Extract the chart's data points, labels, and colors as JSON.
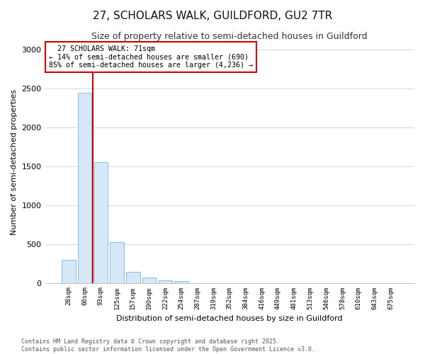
{
  "title_line1": "27, SCHOLARS WALK, GUILDFORD, GU2 7TR",
  "title_line2": "Size of property relative to semi-detached houses in Guildford",
  "xlabel": "Distribution of semi-detached houses by size in Guildford",
  "ylabel": "Number of semi-detached properties",
  "property_label": "27 SCHOLARS WALK: 71sqm",
  "pct_smaller": 14,
  "pct_larger": 85,
  "n_smaller": 690,
  "n_larger": 4236,
  "bar_color": "#d6e8f7",
  "bar_edge_color": "#7ab4d8",
  "vline_color": "#cc0000",
  "annotation_box_edgecolor": "#cc0000",
  "background_color": "#ffffff",
  "grid_color": "#d0dce8",
  "categories": [
    "28sqm",
    "60sqm",
    "93sqm",
    "125sqm",
    "157sqm",
    "190sqm",
    "222sqm",
    "254sqm",
    "287sqm",
    "319sqm",
    "352sqm",
    "384sqm",
    "416sqm",
    "449sqm",
    "481sqm",
    "513sqm",
    "546sqm",
    "578sqm",
    "610sqm",
    "643sqm",
    "675sqm"
  ],
  "values": [
    300,
    2450,
    1550,
    520,
    140,
    65,
    35,
    20,
    0,
    0,
    0,
    0,
    0,
    0,
    0,
    0,
    0,
    0,
    0,
    0,
    0
  ],
  "footer_line1": "Contains HM Land Registry data © Crown copyright and database right 2025.",
  "footer_line2": "Contains public sector information licensed under the Open Government Licence v3.0.",
  "ylim": [
    0,
    3100
  ],
  "yticks": [
    0,
    500,
    1000,
    1500,
    2000,
    2500,
    3000
  ],
  "vline_x": 1.5
}
